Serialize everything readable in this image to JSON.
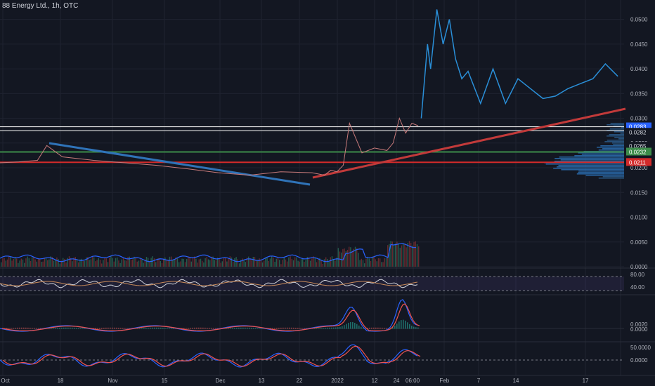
{
  "header": {
    "title": "88 Energy Ltd., 1h, OTC"
  },
  "colors": {
    "background": "#131722",
    "grid": "#1f2330",
    "price": "#2a8fd8",
    "trend": "#2f73b8",
    "trendRed": "#c23a3a",
    "green": "#3c8c4a",
    "red": "#d32a2a",
    "white": "#e6e6e6",
    "volume": "#2962ff"
  },
  "chart_data": [
    {
      "type": "line",
      "name": "price",
      "y_ticks": [
        "0.0500",
        "0.0450",
        "0.0400",
        "0.0350",
        "0.0300",
        "0.0250",
        "0.0200",
        "0.0150",
        "0.0100",
        "0.0050",
        "0.0000"
      ],
      "ylim": [
        0,
        0.0525
      ],
      "price_labels": [
        {
          "value": 0.0283,
          "label": "0.0283",
          "style": "blue"
        },
        {
          "value": 0.0282,
          "label": "0.0282",
          "style": "plain"
        },
        {
          "value": 0.0265,
          "label": "0.0265",
          "style": "plain"
        },
        {
          "value": 0.0232,
          "label": "0.0232",
          "style": "green"
        },
        {
          "value": 0.0211,
          "label": "0.0211",
          "style": "red"
        }
      ],
      "hlines": [
        {
          "value": 0.0283,
          "color": "white"
        },
        {
          "value": 0.0275,
          "color": "white"
        },
        {
          "value": 0.0232,
          "color": "green"
        },
        {
          "value": 0.0211,
          "color": "red"
        }
      ],
      "x_ticks": [
        "Oct",
        "18",
        "Nov",
        "15",
        "Dec",
        "13",
        "22",
        "2022",
        "12",
        "24",
        "06:00",
        "Feb",
        "7",
        "14",
        "17"
      ],
      "series": [
        {
          "segment": "pre",
          "x": [
            0,
            0.03,
            0.06,
            0.075,
            0.1,
            0.15,
            0.2,
            0.25,
            0.3,
            0.35,
            0.4,
            0.45,
            0.5,
            0.52,
            0.53,
            0.54,
            0.55,
            0.56,
            0.58,
            0.6,
            0.62,
            0.63,
            0.64,
            0.65,
            0.66,
            0.67
          ],
          "y": [
            0.021,
            0.0212,
            0.0215,
            0.0245,
            0.0222,
            0.0215,
            0.021,
            0.0205,
            0.0198,
            0.019,
            0.0185,
            0.0192,
            0.019,
            0.0185,
            0.0195,
            0.0192,
            0.0205,
            0.029,
            0.023,
            0.024,
            0.0235,
            0.025,
            0.03,
            0.027,
            0.029,
            0.0285
          ]
        },
        {
          "segment": "post",
          "x": [
            0.675,
            0.685,
            0.69,
            0.7,
            0.71,
            0.72,
            0.73,
            0.74,
            0.75,
            0.77,
            0.79,
            0.81,
            0.83,
            0.85,
            0.87,
            0.89,
            0.91,
            0.93,
            0.95,
            0.97,
            0.99
          ],
          "y": [
            0.03,
            0.045,
            0.04,
            0.052,
            0.045,
            0.05,
            0.042,
            0.038,
            0.0395,
            0.033,
            0.04,
            0.033,
            0.038,
            0.036,
            0.034,
            0.0345,
            0.036,
            0.037,
            0.038,
            0.041,
            0.0385
          ]
        }
      ]
    },
    {
      "type": "line",
      "name": "oscillator-1",
      "y_ticks": [
        "80.00",
        "40.00"
      ]
    },
    {
      "type": "line",
      "name": "macd",
      "y_ticks": [
        "0.0020",
        "0.0000"
      ]
    },
    {
      "type": "line",
      "name": "oscillator-2",
      "y_ticks": [
        "50.0000",
        "0.0000"
      ]
    }
  ]
}
